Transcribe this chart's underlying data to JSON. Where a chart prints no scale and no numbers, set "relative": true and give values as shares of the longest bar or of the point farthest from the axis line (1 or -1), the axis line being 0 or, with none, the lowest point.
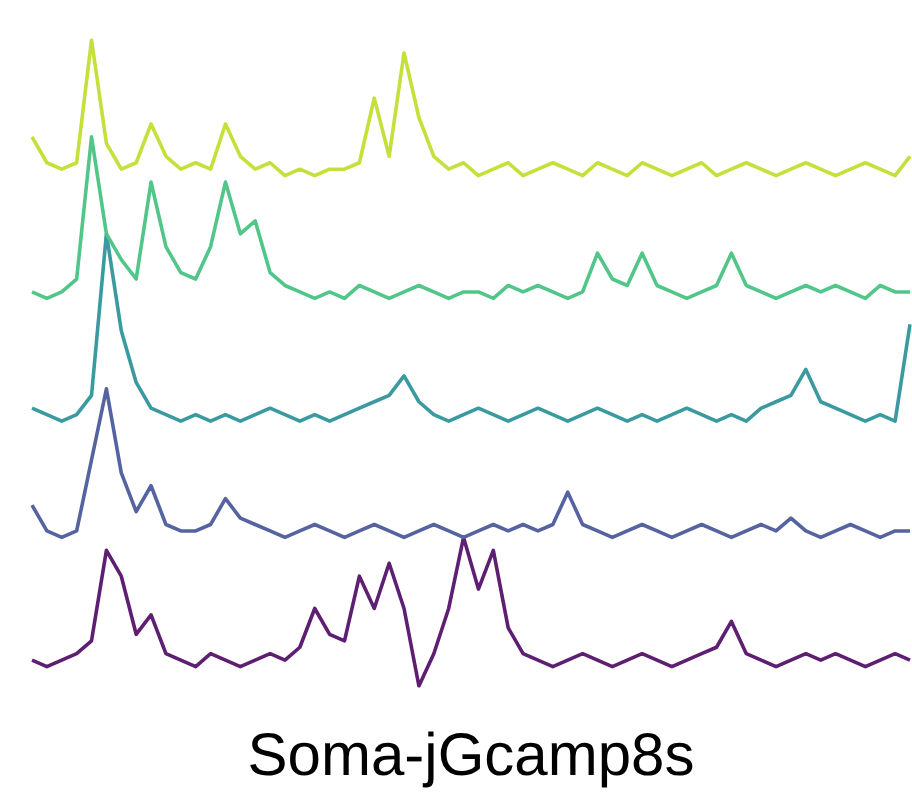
{
  "chart_data": {
    "type": "line",
    "title": "Soma-jGcamp8s",
    "relative": true,
    "marker": "none",
    "categories": [
      null,
      null,
      null,
      null,
      null,
      null,
      null,
      null,
      null,
      null,
      null,
      null,
      null,
      null,
      null,
      null,
      null,
      null,
      null,
      null,
      null,
      null,
      null,
      null,
      null,
      null,
      null,
      null,
      null,
      null,
      null,
      null,
      null,
      null,
      null,
      null,
      null,
      null,
      null,
      null,
      null,
      null,
      null,
      null,
      null,
      null,
      null,
      null,
      null,
      null,
      null,
      null,
      null,
      null,
      null,
      null,
      null,
      null,
      null,
      null
    ],
    "series": [
      {
        "color": "#c5e03a",
        "values": [
          0.85,
          0.81,
          0.8,
          0.81,
          1.0,
          0.84,
          0.8,
          0.81,
          0.87,
          0.82,
          0.8,
          0.81,
          0.8,
          0.87,
          0.82,
          0.8,
          0.81,
          0.79,
          0.8,
          0.79,
          0.8,
          0.8,
          0.81,
          0.91,
          0.82,
          0.98,
          0.88,
          0.82,
          0.8,
          0.81,
          0.79,
          0.8,
          0.81,
          0.79,
          0.8,
          0.81,
          0.8,
          0.79,
          0.81,
          0.8,
          0.79,
          0.81,
          0.8,
          0.79,
          0.8,
          0.81,
          0.79,
          0.8,
          0.81,
          0.8,
          0.79,
          0.8,
          0.81,
          0.8,
          0.79,
          0.8,
          0.81,
          0.8,
          0.79,
          0.82
        ]
      },
      {
        "color": "#52c689",
        "values": [
          0.61,
          0.6,
          0.61,
          0.63,
          0.85,
          0.7,
          0.66,
          0.63,
          0.78,
          0.68,
          0.64,
          0.63,
          0.68,
          0.78,
          0.7,
          0.72,
          0.64,
          0.62,
          0.61,
          0.6,
          0.61,
          0.6,
          0.62,
          0.61,
          0.6,
          0.61,
          0.62,
          0.61,
          0.6,
          0.61,
          0.61,
          0.6,
          0.62,
          0.61,
          0.62,
          0.61,
          0.6,
          0.61,
          0.67,
          0.63,
          0.62,
          0.67,
          0.62,
          0.61,
          0.6,
          0.61,
          0.62,
          0.67,
          0.62,
          0.61,
          0.6,
          0.61,
          0.62,
          0.61,
          0.62,
          0.61,
          0.6,
          0.62,
          0.61,
          0.61
        ]
      },
      {
        "color": "#3a9aa0",
        "values": [
          0.43,
          0.42,
          0.41,
          0.42,
          0.45,
          0.7,
          0.55,
          0.47,
          0.43,
          0.42,
          0.41,
          0.42,
          0.41,
          0.42,
          0.41,
          0.42,
          0.43,
          0.42,
          0.41,
          0.42,
          0.41,
          0.42,
          0.43,
          0.44,
          0.45,
          0.48,
          0.44,
          0.42,
          0.41,
          0.42,
          0.43,
          0.42,
          0.41,
          0.42,
          0.43,
          0.42,
          0.41,
          0.42,
          0.43,
          0.42,
          0.41,
          0.42,
          0.41,
          0.42,
          0.43,
          0.42,
          0.41,
          0.42,
          0.41,
          0.43,
          0.44,
          0.45,
          0.49,
          0.44,
          0.43,
          0.42,
          0.41,
          0.42,
          0.41,
          0.56
        ]
      },
      {
        "color": "#5563a0",
        "values": [
          0.28,
          0.24,
          0.23,
          0.24,
          0.35,
          0.46,
          0.33,
          0.27,
          0.31,
          0.25,
          0.24,
          0.24,
          0.25,
          0.29,
          0.26,
          0.25,
          0.24,
          0.23,
          0.24,
          0.25,
          0.24,
          0.23,
          0.24,
          0.25,
          0.24,
          0.23,
          0.24,
          0.25,
          0.24,
          0.23,
          0.24,
          0.25,
          0.24,
          0.25,
          0.24,
          0.25,
          0.3,
          0.25,
          0.24,
          0.23,
          0.24,
          0.25,
          0.24,
          0.23,
          0.24,
          0.25,
          0.24,
          0.23,
          0.24,
          0.25,
          0.24,
          0.26,
          0.24,
          0.23,
          0.24,
          0.25,
          0.24,
          0.23,
          0.24,
          0.24
        ]
      },
      {
        "color": "#5e1f72",
        "values": [
          0.04,
          0.03,
          0.04,
          0.05,
          0.07,
          0.21,
          0.17,
          0.08,
          0.11,
          0.05,
          0.04,
          0.03,
          0.05,
          0.04,
          0.03,
          0.04,
          0.05,
          0.04,
          0.06,
          0.12,
          0.08,
          0.07,
          0.17,
          0.12,
          0.19,
          0.12,
          0.0,
          0.05,
          0.12,
          0.23,
          0.15,
          0.21,
          0.09,
          0.05,
          0.04,
          0.03,
          0.04,
          0.05,
          0.04,
          0.03,
          0.04,
          0.05,
          0.04,
          0.03,
          0.04,
          0.05,
          0.06,
          0.1,
          0.05,
          0.04,
          0.03,
          0.04,
          0.05,
          0.04,
          0.05,
          0.04,
          0.03,
          0.04,
          0.05,
          0.04
        ]
      }
    ]
  }
}
